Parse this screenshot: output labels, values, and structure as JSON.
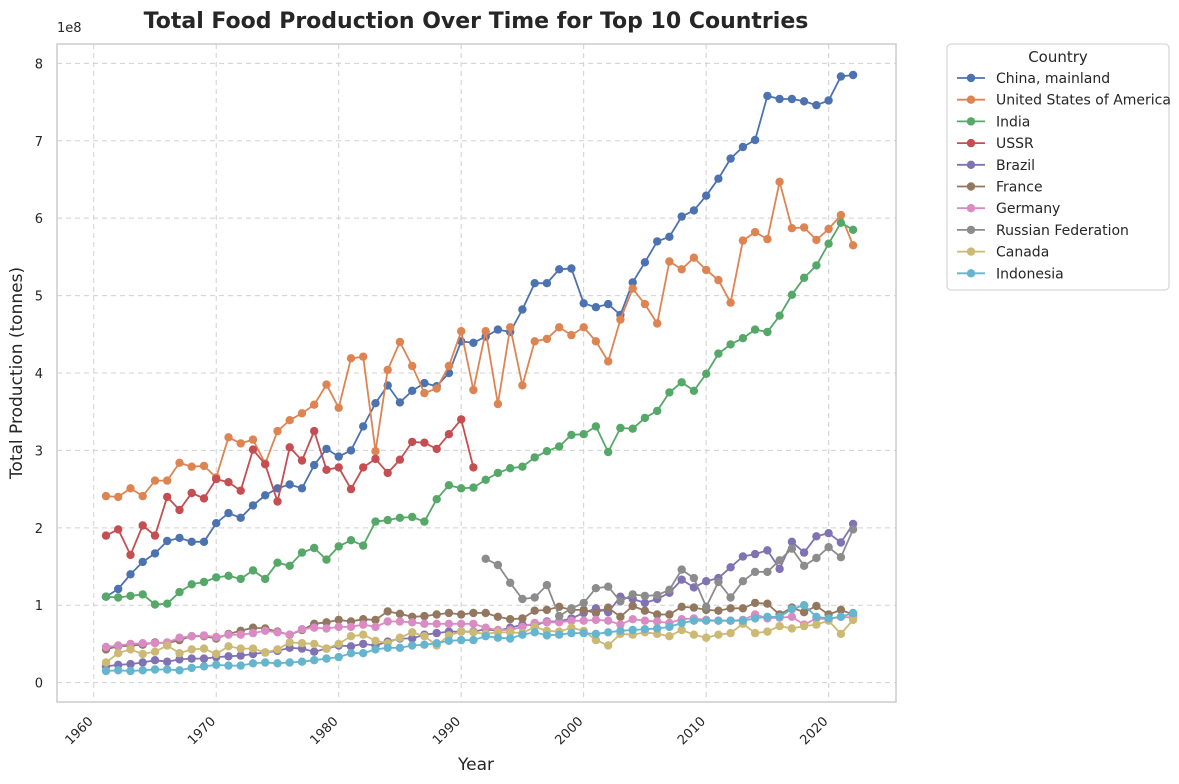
{
  "chart_data": {
    "type": "line",
    "title": "Total Food Production Over Time for Top 10 Countries",
    "xlabel": "Year",
    "ylabel": "Total Production (tonnes)",
    "offset_label": "1e8",
    "xlim": [
      1957,
      2025.5
    ],
    "ylim": [
      -25000000,
      825000000
    ],
    "xticks": [
      1960,
      1970,
      1980,
      1990,
      2000,
      2010,
      2020
    ],
    "xtick_labels": [
      "1960",
      "1970",
      "1980",
      "1990",
      "2000",
      "2010",
      "2020"
    ],
    "yticks": [
      0,
      100000000,
      200000000,
      300000000,
      400000000,
      500000000,
      600000000,
      700000000,
      800000000
    ],
    "ytick_labels": [
      "0",
      "1",
      "2",
      "3",
      "4",
      "5",
      "6",
      "7",
      "8"
    ],
    "grid": true,
    "legend": {
      "title": "Country",
      "placement": "outside-upper-right"
    },
    "series": [
      {
        "name": "China, mainland",
        "color": "#4c72b0",
        "x_start": 1961,
        "values": [
          111000000,
          121000000,
          140000000,
          156000000,
          167000000,
          183000000,
          187000000,
          182000000,
          182000000,
          206000000,
          219000000,
          213000000,
          229000000,
          242000000,
          251000000,
          256000000,
          251000000,
          281000000,
          302000000,
          292000000,
          300000000,
          331000000,
          361000000,
          384000000,
          362000000,
          377000000,
          387000000,
          383000000,
          400000000,
          441000000,
          439000000,
          447000000,
          456000000,
          453000000,
          482000000,
          516000000,
          516000000,
          534000000,
          535000000,
          490000000,
          485000000,
          489000000,
          475000000,
          517000000,
          543000000,
          570000000,
          576000000,
          602000000,
          610000000,
          629000000,
          651000000,
          677000000,
          692000000,
          701000000,
          758000000,
          754000000,
          754000000,
          751000000,
          746000000,
          752000000,
          783000000,
          785000000
        ]
      },
      {
        "name": "United States of America",
        "color": "#dd8452",
        "x_start": 1961,
        "values": [
          241000000,
          240000000,
          251000000,
          241000000,
          261000000,
          261000000,
          284000000,
          279000000,
          280000000,
          265000000,
          317000000,
          309000000,
          314000000,
          283000000,
          325000000,
          339000000,
          348000000,
          359000000,
          385000000,
          355000000,
          419000000,
          421000000,
          299000000,
          404000000,
          440000000,
          409000000,
          374000000,
          380000000,
          409000000,
          454000000,
          378000000,
          454000000,
          360000000,
          459000000,
          384000000,
          441000000,
          444000000,
          459000000,
          449000000,
          459000000,
          441000000,
          415000000,
          469000000,
          509000000,
          489000000,
          464000000,
          544000000,
          534000000,
          549000000,
          533000000,
          520000000,
          491000000,
          571000000,
          582000000,
          573000000,
          647000000,
          587000000,
          588000000,
          572000000,
          586000000,
          604000000,
          565000000
        ]
      },
      {
        "name": "India",
        "color": "#55a868",
        "x_start": 1961,
        "values": [
          111000000,
          110000000,
          112000000,
          114000000,
          101000000,
          102000000,
          117000000,
          127000000,
          130000000,
          136000000,
          138000000,
          134000000,
          145000000,
          134000000,
          155000000,
          151000000,
          168000000,
          174000000,
          159000000,
          176000000,
          184000000,
          177000000,
          208000000,
          210000000,
          213000000,
          214000000,
          208000000,
          237000000,
          255000000,
          251000000,
          252000000,
          262000000,
          271000000,
          277000000,
          279000000,
          291000000,
          299000000,
          305000000,
          320000000,
          321000000,
          331000000,
          298000000,
          329000000,
          328000000,
          342000000,
          351000000,
          375000000,
          388000000,
          377000000,
          399000000,
          425000000,
          437000000,
          445000000,
          456000000,
          453000000,
          474000000,
          501000000,
          523000000,
          539000000,
          567000000,
          594000000,
          585000000
        ]
      },
      {
        "name": "USSR",
        "color": "#c44e52",
        "x_start": 1961,
        "values": [
          190000000,
          198000000,
          165000000,
          203000000,
          190000000,
          240000000,
          223000000,
          245000000,
          238000000,
          263000000,
          259000000,
          248000000,
          301000000,
          282000000,
          234000000,
          304000000,
          287000000,
          325000000,
          275000000,
          278000000,
          250000000,
          278000000,
          289000000,
          271000000,
          288000000,
          311000000,
          310000000,
          302000000,
          321000000,
          340000000,
          278000000
        ]
      },
      {
        "name": "Brazil",
        "color": "#8172b3",
        "x_start": 1961,
        "values": [
          21000000,
          23000000,
          24000000,
          26000000,
          29000000,
          27000000,
          30000000,
          31000000,
          31000000,
          33000000,
          34000000,
          35000000,
          37000000,
          39000000,
          41000000,
          45000000,
          44000000,
          40000000,
          44000000,
          48000000,
          47000000,
          50000000,
          48000000,
          53000000,
          57000000,
          57000000,
          62000000,
          64000000,
          66000000,
          66000000,
          66000000,
          69000000,
          67000000,
          71000000,
          75000000,
          74000000,
          79000000,
          79000000,
          83000000,
          90000000,
          96000000,
          91000000,
          111000000,
          108000000,
          103000000,
          108000000,
          116000000,
          133000000,
          123000000,
          131000000,
          135000000,
          149000000,
          163000000,
          166000000,
          171000000,
          147000000,
          182000000,
          168000000,
          189000000,
          193000000,
          181000000,
          205000000
        ]
      },
      {
        "name": "France",
        "color": "#937860",
        "x_start": 1961,
        "values": [
          43000000,
          47000000,
          48000000,
          49000000,
          52000000,
          51000000,
          55000000,
          60000000,
          60000000,
          57000000,
          63000000,
          67000000,
          71000000,
          70000000,
          66000000,
          62000000,
          68000000,
          76000000,
          78000000,
          81000000,
          79000000,
          82000000,
          81000000,
          92000000,
          89000000,
          85000000,
          86000000,
          88000000,
          90000000,
          88000000,
          90000000,
          90000000,
          85000000,
          82000000,
          83000000,
          93000000,
          94000000,
          98000000,
          94000000,
          94000000,
          90000000,
          97000000,
          85000000,
          99000000,
          93000000,
          88000000,
          88000000,
          98000000,
          97000000,
          94000000,
          93000000,
          96000000,
          96000000,
          103000000,
          102000000,
          88000000,
          97000000,
          91000000,
          99000000,
          88000000,
          94000000,
          88000000
        ]
      },
      {
        "name": "Germany",
        "color": "#da8bc3",
        "x_start": 1961,
        "values": [
          46000000,
          48000000,
          50000000,
          51000000,
          51000000,
          52000000,
          58000000,
          60000000,
          61000000,
          59000000,
          62000000,
          62000000,
          64000000,
          67000000,
          65000000,
          62000000,
          69000000,
          71000000,
          70000000,
          72000000,
          72000000,
          75000000,
          72000000,
          79000000,
          79000000,
          78000000,
          76000000,
          76000000,
          76000000,
          76000000,
          76000000,
          71000000,
          68000000,
          68000000,
          72000000,
          77000000,
          78000000,
          78000000,
          80000000,
          80000000,
          81000000,
          80000000,
          75000000,
          82000000,
          80000000,
          79000000,
          77000000,
          82000000,
          83000000,
          81000000,
          80000000,
          80000000,
          81000000,
          88000000,
          83000000,
          84000000,
          85000000,
          75000000,
          83000000,
          82000000,
          85000000,
          84000000
        ]
      },
      {
        "name": "Russian Federation",
        "color": "#8c8c8c",
        "x_start": 1992,
        "values": [
          160000000,
          152000000,
          129000000,
          108000000,
          110000000,
          126000000,
          86000000,
          96000000,
          103000000,
          122000000,
          124000000,
          105000000,
          114000000,
          112000000,
          113000000,
          120000000,
          146000000,
          135000000,
          98000000,
          130000000,
          110000000,
          131000000,
          143000000,
          143000000,
          158000000,
          173000000,
          151000000,
          161000000,
          175000000,
          162000000,
          198000000
        ]
      },
      {
        "name": "Canada",
        "color": "#ccb974",
        "x_start": 1961,
        "values": [
          26000000,
          38000000,
          43000000,
          37000000,
          40000000,
          48000000,
          38000000,
          43000000,
          44000000,
          37000000,
          47000000,
          44000000,
          44000000,
          39000000,
          43000000,
          52000000,
          51000000,
          50000000,
          44000000,
          50000000,
          60000000,
          62000000,
          54000000,
          51000000,
          58000000,
          65000000,
          60000000,
          48000000,
          61000000,
          66000000,
          65000000,
          63000000,
          65000000,
          65000000,
          64000000,
          72000000,
          67000000,
          66000000,
          71000000,
          67000000,
          55000000,
          48000000,
          63000000,
          62000000,
          65000000,
          63000000,
          60000000,
          68000000,
          62000000,
          58000000,
          62000000,
          64000000,
          76000000,
          64000000,
          66000000,
          73000000,
          70000000,
          73000000,
          75000000,
          80000000,
          63000000,
          81000000
        ]
      },
      {
        "name": "Indonesia",
        "color": "#64b5cd",
        "x_start": 1961,
        "values": [
          15000000,
          16000000,
          15000000,
          16000000,
          17000000,
          17000000,
          16000000,
          19000000,
          21000000,
          23000000,
          22000000,
          22000000,
          25000000,
          26000000,
          25000000,
          26000000,
          27000000,
          29000000,
          31000000,
          33000000,
          38000000,
          38000000,
          43000000,
          45000000,
          45000000,
          48000000,
          49000000,
          51000000,
          54000000,
          55000000,
          55000000,
          60000000,
          58000000,
          57000000,
          62000000,
          65000000,
          61000000,
          62000000,
          64000000,
          64000000,
          63000000,
          65000000,
          67000000,
          68000000,
          69000000,
          70000000,
          72000000,
          77000000,
          80000000,
          80000000,
          80000000,
          80000000,
          80000000,
          83000000,
          85000000,
          85000000,
          95000000,
          100000000,
          85000000,
          83000000,
          85000000,
          90000000
        ]
      }
    ]
  }
}
